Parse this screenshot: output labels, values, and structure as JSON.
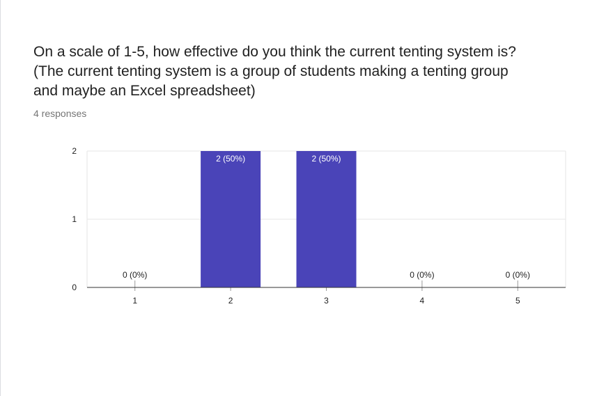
{
  "question": {
    "title": "On a scale of 1-5, how effective do you think the current tenting system is? (The current tenting system is a group of students making a tenting group and maybe an Excel spreadsheet)",
    "responses": "4 responses"
  },
  "chart_data": {
    "type": "bar",
    "categories": [
      "1",
      "2",
      "3",
      "4",
      "5"
    ],
    "values": [
      0,
      2,
      2,
      0,
      0
    ],
    "data_labels": [
      "0 (0%)",
      "2 (50%)",
      "2 (50%)",
      "0 (0%)",
      "0 (0%)"
    ],
    "ylim": [
      0,
      2
    ],
    "yticks": [
      0,
      1,
      2
    ],
    "grid": true,
    "colors": {
      "bar": "#4a44b8",
      "grid": "#e6e6e6",
      "axis": "#333333",
      "label_inside": "#ffffff",
      "label_outside": "#212121"
    }
  }
}
